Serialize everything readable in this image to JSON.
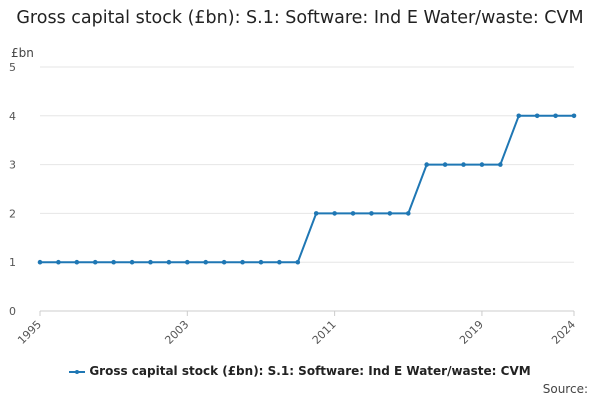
{
  "chart_data": {
    "type": "line",
    "title": "Gross capital stock (£bn): S.1: Software: Ind E Water/waste: CVM",
    "ylabel": "£bn",
    "xlabel": "",
    "ylim": [
      0,
      5
    ],
    "yticks": [
      0,
      1,
      2,
      3,
      4,
      5
    ],
    "xlim": [
      1995,
      2024
    ],
    "xticks": [
      "1995",
      "2003",
      "2011",
      "2019",
      "2024"
    ],
    "grid": true,
    "legend_position": "bottom",
    "x": [
      1995,
      1996,
      1997,
      1998,
      1999,
      2000,
      2001,
      2002,
      2003,
      2004,
      2005,
      2006,
      2007,
      2008,
      2009,
      2010,
      2011,
      2012,
      2013,
      2014,
      2015,
      2016,
      2017,
      2018,
      2019,
      2020,
      2021,
      2022,
      2023,
      2024
    ],
    "series": [
      {
        "name": "Gross capital stock (£bn): S.1: Software: Ind E Water/waste: CVM",
        "color": "#1f77b4",
        "values": [
          1,
          1,
          1,
          1,
          1,
          1,
          1,
          1,
          1,
          1,
          1,
          1,
          1,
          1,
          1,
          2,
          2,
          2,
          2,
          2,
          2,
          3,
          3,
          3,
          3,
          3,
          4,
          4,
          4,
          4
        ]
      }
    ]
  },
  "source_label": "Source:"
}
